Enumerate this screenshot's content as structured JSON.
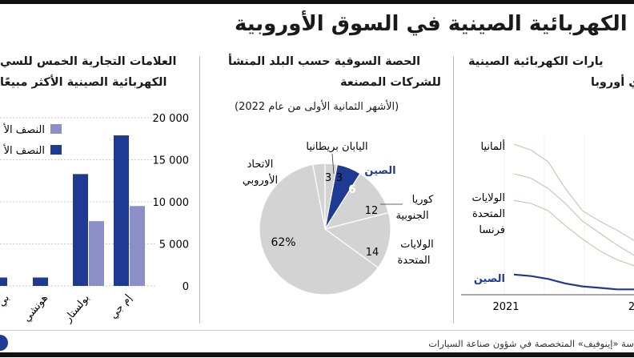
{
  "header": {
    "title": "يارات الكهربائية الصينية في السوق الأوروبية"
  },
  "panel_right": {
    "title_line1": "يارات الكهربائية الصينية",
    "title_line2": "ي أوروبا",
    "labels": {
      "germany": "ألمانيا",
      "usa_line1": "الولايات",
      "usa_line2": "المتحدة",
      "france": "فرنسا",
      "china": "الصين"
    },
    "x_tick_2021": "2021",
    "x_tick_next": "2"
  },
  "panel_middle": {
    "title_line1": "الحصة السوقية حسب البلد المنشأ",
    "title_line2": "للشركات المصنعة",
    "subtitle": "(الأشهر الثمانية الأولى من عام 2022)",
    "labels": {
      "eu_line1": "الاتحاد",
      "eu_line2": "الأوروبي",
      "eu_value": "62%",
      "japan_uk": "اليابان بريطانيا",
      "japan_value": "3",
      "uk_value": "3",
      "china": "الصين",
      "china_value": "6",
      "korea_line1": "كوريا",
      "korea_line2": "الجنوبية",
      "korea_value": "12",
      "usa_line1": "الولايات",
      "usa_line2": "المتحدة",
      "usa_value": "14"
    }
  },
  "panel_left": {
    "title_line1": "العلامات التجارية الخمس للسي",
    "title_line2": "الكهربائية الصينية الأكثر مبيعًا",
    "legend_item1": "النصف الأ",
    "legend_item2": "النصف الأ",
    "y_ticks": [
      "20 000",
      "15 000",
      "10 000",
      "5 000",
      "0"
    ],
    "x_labels": [
      "إم جي",
      "بولستار",
      "هونشي",
      "بي واي دي"
    ]
  },
  "footer": {
    "source": "سة «إينوفيف» المتخصصة في شؤون صناعة السيارات"
  },
  "colors": {
    "accent_dark": "#1f3a93",
    "accent_light": "#8b8fc6",
    "pie_gray": "#d3d3d3",
    "line_gray": "#c9c1b8"
  },
  "chart_data": [
    {
      "type": "pie",
      "title": "الحصة السوقية حسب البلد المنشأ للشركات المصنعة",
      "subtitle": "(الأشهر الثمانية الأولى من عام 2022)",
      "categories": [
        "الاتحاد الأوروبي",
        "الولايات المتحدة",
        "كوريا الجنوبية",
        "الصين",
        "اليابان",
        "بريطانيا"
      ],
      "values": [
        62,
        14,
        12,
        6,
        3,
        3
      ],
      "unit": "%"
    },
    {
      "type": "bar",
      "title": "العلامات التجارية الخمس للسي الكهربائية الصينية الأكثر مبيعًا",
      "categories": [
        "إم جي",
        "بولستار",
        "هونشي",
        "بي واي دي",
        ""
      ],
      "series": [
        {
          "name": "النصف الأ",
          "color": "#1f3a93",
          "values": [
            17900,
            13300,
            1000,
            1000,
            0
          ]
        },
        {
          "name": "النصف الأ",
          "color": "#8b8fc6",
          "values": [
            9500,
            7700,
            0,
            0,
            0
          ]
        }
      ],
      "ylim": [
        0,
        20000
      ],
      "yticks": [
        0,
        5000,
        10000,
        15000,
        20000
      ]
    },
    {
      "type": "line",
      "title": "يارات الكهربائية الصينية ي أوروبا",
      "x_tick_labels": [
        "2021",
        "2"
      ],
      "series": [
        {
          "name": "ألمانيا",
          "color": "#c9c1b8",
          "values": [
            100,
            96,
            88,
            70,
            55,
            48,
            42,
            35
          ]
        },
        {
          "name": "الولايات المتحدة",
          "color": "#c9c1b8",
          "values": [
            80,
            77,
            70,
            60,
            48,
            40,
            32,
            25
          ]
        },
        {
          "name": "فرنسا",
          "color": "#c9c1b8",
          "values": [
            62,
            60,
            55,
            45,
            36,
            28,
            22,
            18
          ]
        },
        {
          "name": "الصين",
          "color": "#1f3a93",
          "values": [
            12,
            11,
            9,
            6,
            4,
            3,
            2,
            2
          ]
        }
      ]
    }
  ]
}
